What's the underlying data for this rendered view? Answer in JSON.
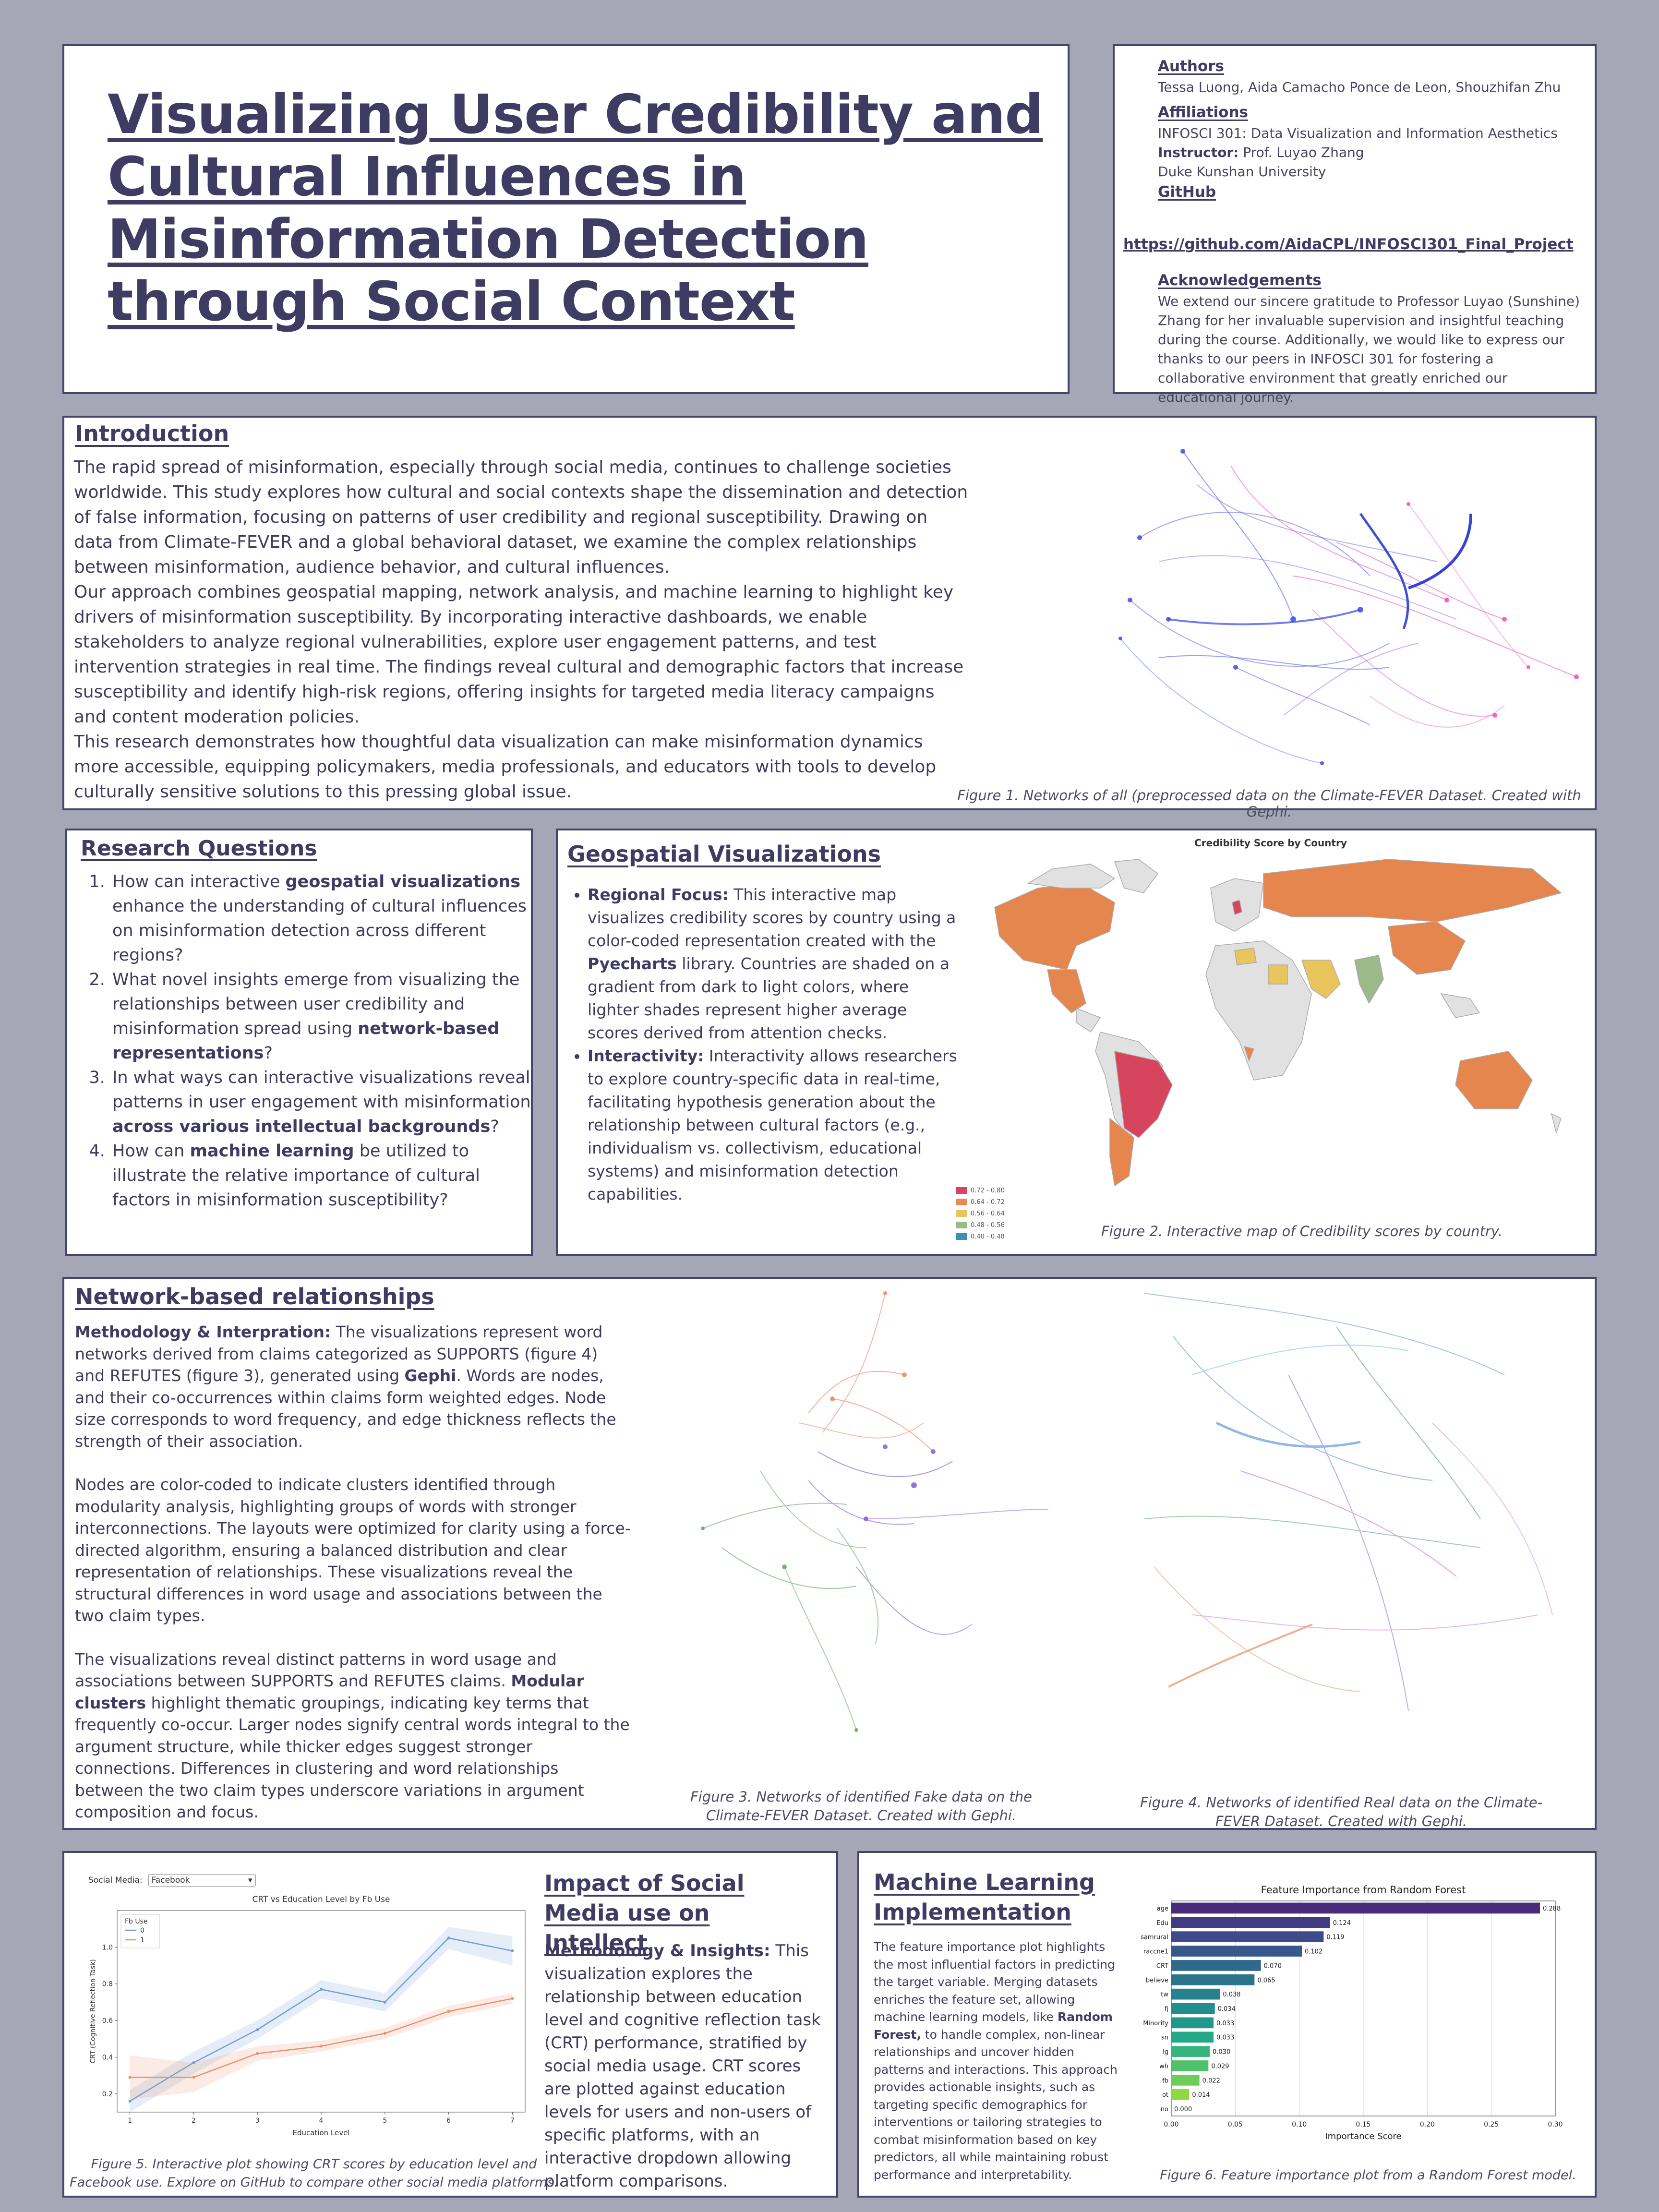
{
  "title": "Visualizing User Credibility and Cultural Influences in Misinformation Detection through Social Context",
  "info": {
    "authors_heading": "Authors",
    "authors": "Tessa Luong, Aida Camacho Ponce de Leon, Shouzhifan Zhu",
    "affiliations_heading": "Affiliations",
    "course": "INFOSCI 301: Data Visualization and Information Aesthetics",
    "instructor_label": "Instructor:",
    "instructor": "Prof. Luyao Zhang",
    "university": "Duke Kunshan University",
    "github_heading": "GitHub",
    "github_url": "https://github.com/AidaCPL/INFOSCI301_Final_Project",
    "ack_heading": "Acknowledgements",
    "ack_text": "We extend our sincere gratitude to Professor Luyao (Sunshine) Zhang for her invaluable supervision and insightful teaching during the course. Additionally, we would like to express our thanks to our peers in INFOSCI 301 for fostering a collaborative environment that greatly enriched our educational journey."
  },
  "introduction": {
    "heading": "Introduction",
    "p1": "The rapid spread of misinformation, especially through social media, continues to challenge societies worldwide. This study explores how cultural and social contexts shape the dissemination and detection of false information, focusing on patterns of user credibility and regional susceptibility. Drawing on data from Climate-FEVER and a global behavioral dataset, we examine the complex relationships between misinformation, audience behavior, and cultural influences.",
    "p2": "Our approach combines geospatial mapping, network analysis, and machine learning to highlight key drivers of misinformation susceptibility. By incorporating interactive dashboards, we enable stakeholders to analyze regional vulnerabilities, explore user engagement patterns, and test intervention strategies in real time. The findings reveal cultural and demographic factors that increase susceptibility and identify high-risk regions, offering insights for targeted media literacy campaigns and content moderation policies.",
    "p3": "This research demonstrates how thoughtful data visualization can make misinformation dynamics more accessible, equipping policymakers, media professionals, and educators with tools to develop culturally sensitive solutions to this pressing global issue.",
    "figure_caption": "Figure 1. Networks of all (preprocessed data on the Climate-FEVER Dataset. Created with Gephi."
  },
  "research_questions": {
    "heading": "Research Questions",
    "q1_a": "How can interactive ",
    "q1_b": "geospatial visualizations",
    "q1_c": " enhance the understanding of cultural influences on misinformation detection across different regions?",
    "q2_a": "What novel insights emerge from visualizing the relationships between user credibility and misinformation spread using ",
    "q2_b": "network-based representations",
    "q2_c": "?",
    "q3_a": "In what ways can interactive visualizations reveal patterns in user engagement with misinformation ",
    "q3_b": "across various intellectual backgrounds",
    "q3_c": "?",
    "q4_a": "How can ",
    "q4_b": "machine learning",
    "q4_c": " be utilized to illustrate the relative importance of cultural factors in misinformation susceptibility?"
  },
  "geo": {
    "heading": "Geospatial Visualizations",
    "b1_label": "Regional Focus:",
    "b1_a": " This interactive map visualizes credibility scores by country using a color-coded representation created with the ",
    "b1_b": "Pyecharts",
    "b1_c": " library. Countries are shaded on a gradient from dark to light colors, where lighter shades represent higher average scores derived from attention checks.",
    "b2_label": "Interactivity:",
    "b2_text": " Interactivity allows researchers to explore country-specific data in real-time, facilitating hypothesis generation about the relationship between cultural factors (e.g., individualism vs. collectivism, educational systems) and misinformation detection capabilities.",
    "map_title": "Credibility Score by Country",
    "legend": [
      "0.72 - 0.80",
      "0.64 - 0.72",
      "0.56 - 0.64",
      "0.48 - 0.56",
      "0.40 - 0.48"
    ],
    "legend_colors": [
      "#d6445d",
      "#e68a57",
      "#e8c55d",
      "#9cb98a",
      "#3d8fb5"
    ],
    "figure_caption": "Figure 2. Interactive map of Credibility scores by country."
  },
  "network": {
    "heading": "Network-based relationships",
    "p1_label": "Methodology & Interpration:",
    "p1_a": " The visualizations represent word networks derived from claims categorized as SUPPORTS (figure 4) and REFUTES (figure 3), generated using ",
    "p1_b": "Gephi",
    "p1_c": ". Words are nodes, and their co-occurrences within claims form weighted edges. Node size corresponds to word frequency, and edge thickness reflects the strength of their association.",
    "p2": "Nodes are color-coded to indicate clusters identified through modularity analysis, highlighting groups of words with stronger interconnections. The layouts were optimized for clarity using a force-directed algorithm, ensuring a balanced distribution and clear representation of relationships. These visualizations reveal the structural differences in word usage and associations between the two claim types.",
    "p3_a": "The visualizations reveal distinct patterns in word usage and associations between SUPPORTS and REFUTES claims. ",
    "p3_b": "Modular clusters",
    "p3_c": " highlight thematic groupings, indicating key terms that frequently co-occur. Larger nodes signify central words integral to the argument structure, while thicker edges suggest stronger connections. Differences in clustering and word relationships between the two claim types underscore variations in argument composition and focus.",
    "fig3_caption": "Figure 3. Networks of identified Fake data on the Climate-FEVER Dataset. Created with Gephi.",
    "fig4_caption": "Figure 4. Networks of identified Real data on the Climate-FEVER Dataset. Created with Gephi."
  },
  "impact": {
    "heading": "Impact of Social Media use on Intellect",
    "label": "Methodology & Insights:",
    "text": " This visualization explores the relationship between education level and cognitive reflection task (CRT) performance, stratified by social media usage. CRT scores are plotted against education levels for users and non-users of specific platforms, with an interactive dropdown allowing platform comparisons.",
    "dropdown_label": "Social Media:",
    "dropdown_value": "Facebook",
    "figure_caption": "Figure 5. Interactive plot showing CRT scores by education level and Facebook use. Explore on GitHub to compare other social media platforms."
  },
  "ml": {
    "heading": "Machine Learning Implementation",
    "text_a": "The feature importance plot highlights the most influential factors in predicting the target variable. Merging datasets enriches the feature set, allowing machine learning models, like ",
    "text_b": "Random Forest,",
    "text_c": " to handle complex, non-linear relationships and uncover hidden patterns and interactions. This approach provides actionable insights, such as targeting specific demographics for interventions or tailoring strategies to combat misinformation based on key predictors, all while maintaining robust performance and interpretability.",
    "figure_caption": "Figure 6. Feature importance plot from a Random Forest model."
  },
  "chart_data": [
    {
      "type": "line",
      "title": "CRT vs Education Level by Fb Use",
      "xlabel": "Education Level",
      "ylabel": "CRT (Cognitive Reflection Task)",
      "legend_title": "Fb Use",
      "legend_placement": "top-left",
      "x": [
        1,
        2,
        3,
        4,
        5,
        6,
        7
      ],
      "xlim": [
        0.8,
        7.2
      ],
      "ylim": [
        0.1,
        1.2
      ],
      "y_ticks": [
        0.2,
        0.4,
        0.6,
        0.8,
        1.0
      ],
      "series": [
        {
          "name": "0",
          "color": "#6f9bd6",
          "values": [
            0.16,
            0.37,
            0.55,
            0.77,
            0.7,
            1.05,
            0.98
          ],
          "ci": [
            0.06,
            0.06,
            0.05,
            0.05,
            0.05,
            0.06,
            0.08
          ]
        },
        {
          "name": "1",
          "color": "#eb8f6a",
          "values": [
            0.29,
            0.29,
            0.42,
            0.46,
            0.53,
            0.65,
            0.72
          ],
          "ci": [
            0.12,
            0.08,
            0.04,
            0.03,
            0.03,
            0.03,
            0.03
          ]
        }
      ]
    },
    {
      "type": "bar",
      "orientation": "horizontal",
      "title": "Feature Importance from Random Forest",
      "xlabel": "Importance Score",
      "ylabel": "",
      "xlim": [
        0,
        0.3
      ],
      "x_ticks": [
        0.0,
        0.05,
        0.1,
        0.15,
        0.2,
        0.25,
        0.3
      ],
      "x_tick_labels": [
        "0.00",
        "0.05",
        "0.10",
        "0.15",
        "0.20",
        "0.25",
        "0.30"
      ],
      "categories": [
        "age",
        "Edu",
        "samrural",
        "raccne1",
        "CRT",
        "believe",
        "tw",
        "fj",
        "Minority",
        "sn",
        "ig",
        "wh",
        "fb",
        "ot",
        "no"
      ],
      "values": [
        0.288,
        0.124,
        0.119,
        0.102,
        0.07,
        0.065,
        0.038,
        0.034,
        0.033,
        0.033,
        0.03,
        0.029,
        0.022,
        0.014,
        0.0
      ],
      "value_labels": [
        "0.288",
        "0.124",
        "0.119",
        "0.102",
        "0.070",
        "0.065",
        "0.038",
        "0.034",
        "0.033",
        "0.033",
        "0.030",
        "0.029",
        "0.022",
        "0.014",
        "0.000"
      ],
      "colors": [
        "#472c7a",
        "#433b82",
        "#3e4a89",
        "#38588c",
        "#31688e",
        "#2b748e",
        "#26828e",
        "#218e8d",
        "#1f9a8a",
        "#25a885",
        "#36b47c",
        "#4fc16b",
        "#6ccd5a",
        "#90d743",
        "#b5de2b"
      ]
    }
  ]
}
